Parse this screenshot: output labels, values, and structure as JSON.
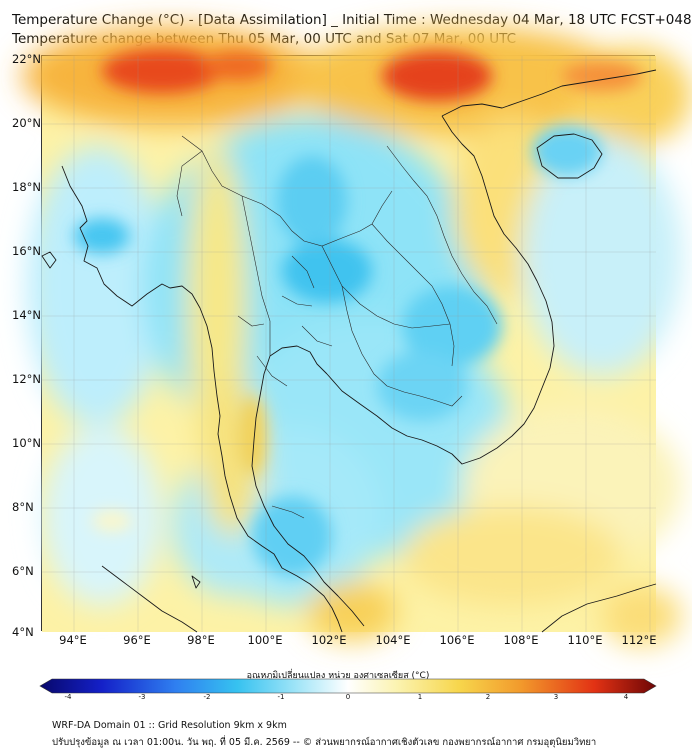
{
  "header": {
    "title_line1": "Temperature Change (°C) - [Data Assimilation] _ Initial Time : Wednesday 04 Mar, 18 UTC FCST+048",
    "title_line2": "Temperature change between Thu 05 Mar, 00 UTC and Sat 07 Mar, 00 UTC"
  },
  "map": {
    "lat_labels": [
      "22°N",
      "20°N",
      "18°N",
      "16°N",
      "14°N",
      "12°N",
      "10°N",
      "8°N",
      "6°N",
      "4°N"
    ],
    "lon_labels": [
      "94°E",
      "96°E",
      "98°E",
      "100°E",
      "102°E",
      "104°E",
      "106°E",
      "108°E",
      "110°E",
      "112°E"
    ],
    "lat_range": [
      4,
      22
    ],
    "lon_range": [
      93,
      112.2
    ]
  },
  "colorbar": {
    "title": "อุณหภูมิเปลี่ยนแปลง หน่วย องศาเซลเซียส (°C)",
    "ticks": [
      "-4",
      "-3",
      "-2",
      "-1",
      "0",
      "1",
      "2",
      "3",
      "4"
    ],
    "range": [
      -4,
      4
    ]
  },
  "footer": {
    "line1": "WRF-DA Domain 01 :: Grid Resolution 9km x 9km",
    "line2": "ปรับปรุงข้อมูล ณ เวลา 01:00น. วัน พฤ. ที่ 05 มี.ค. 2569 -- © ส่วนพยากรณ์อากาศเชิงตัวเลข กองพยากรณ์อากาศ กรมอุตุนิยมวิทยา"
  },
  "colors": {
    "frame": "#333333",
    "coast": "#1a1a1a"
  }
}
